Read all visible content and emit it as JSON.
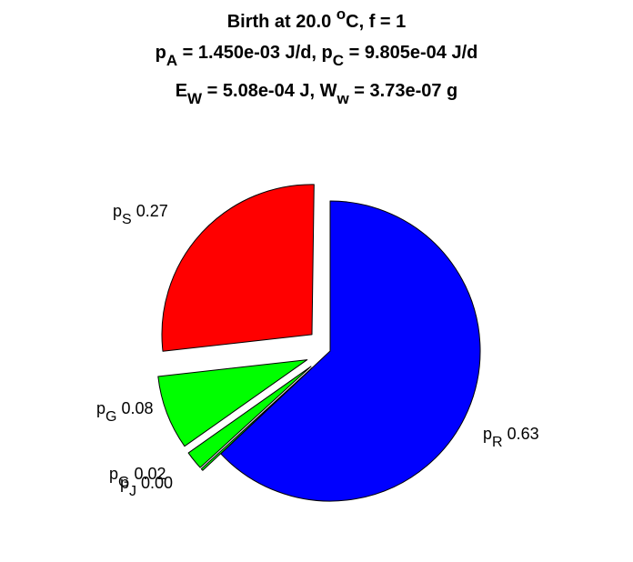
{
  "chart_data": {
    "type": "pie",
    "title_lines": [
      [
        {
          "t": "Birth at 20.0 "
        },
        {
          "t": "o",
          "sup": true
        },
        {
          "t": "C, f = 1"
        }
      ],
      [
        {
          "t": "p"
        },
        {
          "t": "A",
          "sub": true
        },
        {
          "t": " = 1.450e-03 J/d, p"
        },
        {
          "t": "C",
          "sub": true
        },
        {
          "t": " = 9.805e-04 J/d"
        }
      ],
      [
        {
          "t": "E"
        },
        {
          "t": "W",
          "sub": true
        },
        {
          "t": " = 5.08e-04 J, W"
        },
        {
          "t": "w",
          "sub": true
        },
        {
          "t": " = 3.73e-07 g"
        }
      ]
    ],
    "slices": [
      {
        "name": "p",
        "sub": "R",
        "value": 0.63,
        "label": "0.63",
        "color": "#0000ff",
        "exploded": false
      },
      {
        "name": "p",
        "sub": "J",
        "value": 0.0,
        "label": "0.00",
        "color": "#00ff00",
        "exploded": true
      },
      {
        "name": "p",
        "sub": "G",
        "value": 0.02,
        "label": "0.02",
        "color": "#00ff00",
        "exploded": true
      },
      {
        "name": "p",
        "sub": "G",
        "value": 0.08,
        "label": "0.08",
        "color": "#00ff00",
        "exploded": true
      },
      {
        "name": "p",
        "sub": "S",
        "value": 0.27,
        "label": "0.27",
        "color": "#ff0000",
        "exploded": true
      }
    ]
  }
}
